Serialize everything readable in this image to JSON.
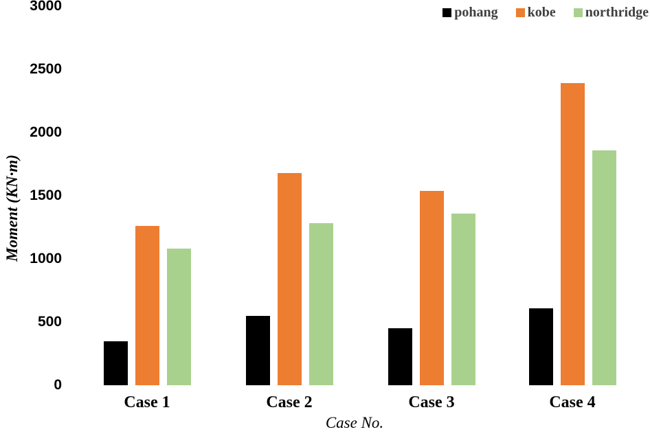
{
  "chart_data": {
    "type": "bar",
    "title": "",
    "xlabel": "Case No.",
    "ylabel": "Moment (KN·m)",
    "categories": [
      "Case 1",
      "Case 2",
      "Case 3",
      "Case 4"
    ],
    "series": [
      {
        "name": "pohang",
        "color": "#000000",
        "values": [
          350,
          550,
          450,
          610
        ]
      },
      {
        "name": "kobe",
        "color": "#ED7D31",
        "values": [
          1260,
          1680,
          1540,
          2390
        ]
      },
      {
        "name": "northridge",
        "color": "#A9D18E",
        "values": [
          1080,
          1280,
          1360,
          1860
        ]
      }
    ],
    "ylim": [
      0,
      3000
    ],
    "yticks": [
      0,
      500,
      1000,
      1500,
      2000,
      2500,
      3000
    ],
    "grid": false,
    "axis_lines": false,
    "legend_position": "top-right",
    "legend_text_color": "#404040"
  }
}
